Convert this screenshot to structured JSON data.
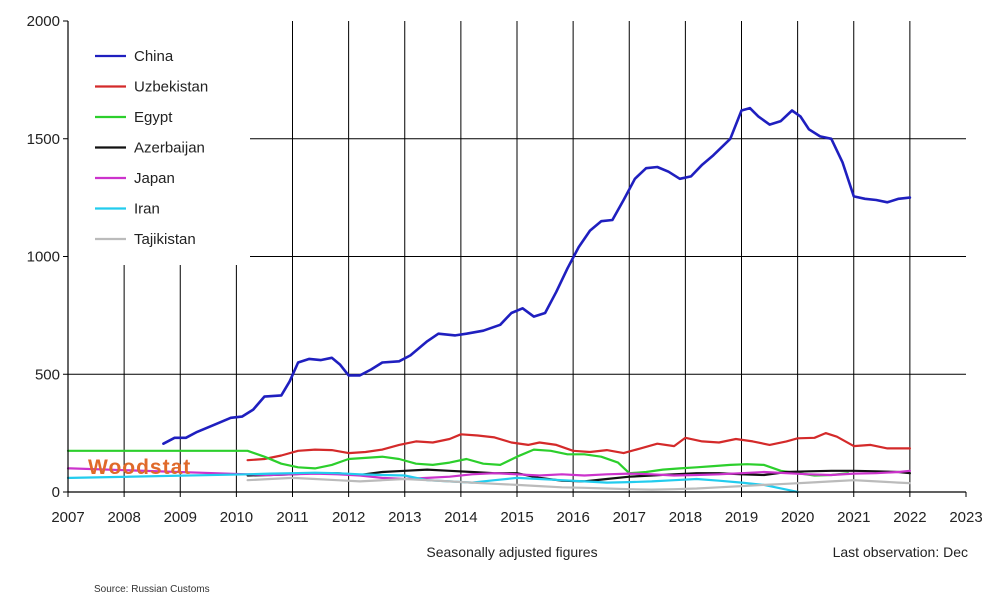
{
  "chart_data": {
    "type": "line",
    "title": "",
    "xlabel": "",
    "ylabel": "",
    "xlim": [
      2007,
      2023
    ],
    "ylim": [
      0,
      2000
    ],
    "x_ticks": [
      "2007",
      "2008",
      "2009",
      "2010",
      "2011",
      "2012",
      "2013",
      "2014",
      "2015",
      "2016",
      "2017",
      "2018",
      "2019",
      "2020",
      "2021",
      "2022",
      "2023"
    ],
    "y_ticks": [
      "0",
      "500",
      "1000",
      "1500",
      "2000"
    ],
    "grid": true,
    "legend_position": "top-left",
    "annotations": {
      "note_left": "Seasonally adjusted figures",
      "note_right": "Last observation: Dec",
      "source": "Source: Russian Customs",
      "brand": "Woodstat"
    },
    "series": [
      {
        "name": "China",
        "color": "#1f1fbf",
        "points": [
          [
            2008.7,
            205
          ],
          [
            2008.9,
            230
          ],
          [
            2009.1,
            230
          ],
          [
            2009.3,
            255
          ],
          [
            2009.6,
            285
          ],
          [
            2009.9,
            315
          ],
          [
            2010.1,
            320
          ],
          [
            2010.3,
            350
          ],
          [
            2010.5,
            405
          ],
          [
            2010.8,
            410
          ],
          [
            2010.95,
            470
          ],
          [
            2011.1,
            550
          ],
          [
            2011.3,
            565
          ],
          [
            2011.5,
            560
          ],
          [
            2011.7,
            570
          ],
          [
            2011.85,
            540
          ],
          [
            2012.0,
            495
          ],
          [
            2012.2,
            495
          ],
          [
            2012.4,
            520
          ],
          [
            2012.6,
            550
          ],
          [
            2012.9,
            555
          ],
          [
            2013.1,
            580
          ],
          [
            2013.4,
            640
          ],
          [
            2013.6,
            672
          ],
          [
            2013.9,
            665
          ],
          [
            2014.1,
            672
          ],
          [
            2014.4,
            685
          ],
          [
            2014.7,
            710
          ],
          [
            2014.9,
            760
          ],
          [
            2015.1,
            780
          ],
          [
            2015.3,
            745
          ],
          [
            2015.5,
            760
          ],
          [
            2015.7,
            850
          ],
          [
            2015.9,
            950
          ],
          [
            2016.1,
            1040
          ],
          [
            2016.3,
            1110
          ],
          [
            2016.5,
            1150
          ],
          [
            2016.7,
            1155
          ],
          [
            2016.9,
            1240
          ],
          [
            2017.1,
            1330
          ],
          [
            2017.3,
            1375
          ],
          [
            2017.5,
            1380
          ],
          [
            2017.7,
            1360
          ],
          [
            2017.9,
            1330
          ],
          [
            2018.1,
            1340
          ],
          [
            2018.3,
            1390
          ],
          [
            2018.5,
            1430
          ],
          [
            2018.8,
            1500
          ],
          [
            2019.0,
            1620
          ],
          [
            2019.15,
            1630
          ],
          [
            2019.3,
            1595
          ],
          [
            2019.5,
            1560
          ],
          [
            2019.7,
            1575
          ],
          [
            2019.9,
            1620
          ],
          [
            2020.05,
            1595
          ],
          [
            2020.2,
            1540
          ],
          [
            2020.4,
            1510
          ],
          [
            2020.6,
            1500
          ],
          [
            2020.8,
            1400
          ],
          [
            2021.0,
            1255
          ],
          [
            2021.2,
            1245
          ],
          [
            2021.4,
            1240
          ],
          [
            2021.6,
            1230
          ],
          [
            2021.8,
            1245
          ],
          [
            2022.0,
            1250
          ]
        ]
      },
      {
        "name": "Uzbekistan",
        "color": "#d42a2a",
        "points": [
          [
            2010.2,
            135
          ],
          [
            2010.5,
            140
          ],
          [
            2010.8,
            155
          ],
          [
            2011.1,
            175
          ],
          [
            2011.4,
            180
          ],
          [
            2011.7,
            178
          ],
          [
            2012.0,
            165
          ],
          [
            2012.3,
            170
          ],
          [
            2012.6,
            180
          ],
          [
            2012.9,
            200
          ],
          [
            2013.2,
            215
          ],
          [
            2013.5,
            210
          ],
          [
            2013.8,
            225
          ],
          [
            2014.0,
            245
          ],
          [
            2014.3,
            240
          ],
          [
            2014.6,
            232
          ],
          [
            2014.9,
            210
          ],
          [
            2015.2,
            200
          ],
          [
            2015.4,
            210
          ],
          [
            2015.7,
            200
          ],
          [
            2016.0,
            175
          ],
          [
            2016.3,
            170
          ],
          [
            2016.6,
            178
          ],
          [
            2016.9,
            165
          ],
          [
            2017.2,
            185
          ],
          [
            2017.5,
            205
          ],
          [
            2017.8,
            195
          ],
          [
            2018.0,
            230
          ],
          [
            2018.3,
            215
          ],
          [
            2018.6,
            210
          ],
          [
            2018.9,
            225
          ],
          [
            2019.2,
            215
          ],
          [
            2019.5,
            200
          ],
          [
            2019.8,
            215
          ],
          [
            2020.0,
            228
          ],
          [
            2020.3,
            230
          ],
          [
            2020.5,
            250
          ],
          [
            2020.7,
            235
          ],
          [
            2021.0,
            195
          ],
          [
            2021.3,
            200
          ],
          [
            2021.6,
            185
          ],
          [
            2022.0,
            185
          ]
        ]
      },
      {
        "name": "Egypt",
        "color": "#2ccf2c",
        "points": [
          [
            2007.0,
            175
          ],
          [
            2007.05,
            175
          ],
          [
            2010.2,
            175
          ],
          [
            2010.5,
            150
          ],
          [
            2010.8,
            120
          ],
          [
            2011.1,
            105
          ],
          [
            2011.4,
            100
          ],
          [
            2011.7,
            115
          ],
          [
            2012.0,
            140
          ],
          [
            2012.3,
            145
          ],
          [
            2012.6,
            150
          ],
          [
            2012.9,
            140
          ],
          [
            2013.2,
            120
          ],
          [
            2013.5,
            115
          ],
          [
            2013.8,
            125
          ],
          [
            2014.1,
            140
          ],
          [
            2014.4,
            120
          ],
          [
            2014.7,
            115
          ],
          [
            2015.0,
            150
          ],
          [
            2015.3,
            180
          ],
          [
            2015.6,
            175
          ],
          [
            2015.9,
            160
          ],
          [
            2016.2,
            160
          ],
          [
            2016.5,
            150
          ],
          [
            2016.8,
            125
          ],
          [
            2017.0,
            80
          ],
          [
            2017.3,
            85
          ],
          [
            2017.6,
            95
          ],
          [
            2017.9,
            100
          ],
          [
            2018.2,
            105
          ],
          [
            2018.5,
            110
          ],
          [
            2018.8,
            115
          ],
          [
            2019.1,
            118
          ],
          [
            2019.4,
            115
          ],
          [
            2019.7,
            90
          ],
          [
            2020.0,
            80
          ],
          [
            2020.3,
            70
          ],
          [
            2020.6,
            72
          ],
          [
            2020.9,
            80
          ]
        ]
      },
      {
        "name": "Azerbaijan",
        "color": "#111111",
        "points": [
          [
            2010.2,
            70
          ],
          [
            2010.6,
            72
          ],
          [
            2011.0,
            75
          ],
          [
            2011.4,
            80
          ],
          [
            2011.8,
            80
          ],
          [
            2012.2,
            72
          ],
          [
            2012.6,
            85
          ],
          [
            2013.0,
            90
          ],
          [
            2013.4,
            95
          ],
          [
            2013.8,
            90
          ],
          [
            2014.2,
            85
          ],
          [
            2014.6,
            80
          ],
          [
            2015.0,
            80
          ],
          [
            2015.4,
            60
          ],
          [
            2015.8,
            48
          ],
          [
            2016.2,
            45
          ],
          [
            2016.6,
            55
          ],
          [
            2017.0,
            65
          ],
          [
            2017.4,
            70
          ],
          [
            2017.8,
            75
          ],
          [
            2018.2,
            80
          ],
          [
            2018.6,
            80
          ],
          [
            2019.0,
            75
          ],
          [
            2019.4,
            72
          ],
          [
            2019.8,
            85
          ],
          [
            2020.2,
            88
          ],
          [
            2020.6,
            90
          ],
          [
            2021.0,
            90
          ],
          [
            2021.4,
            88
          ],
          [
            2021.8,
            85
          ],
          [
            2022.0,
            80
          ]
        ]
      },
      {
        "name": "Japan",
        "color": "#cc33cc",
        "points": [
          [
            2007.0,
            100
          ],
          [
            2007.05,
            100
          ],
          [
            2010.2,
            75
          ],
          [
            2010.6,
            72
          ],
          [
            2011.0,
            75
          ],
          [
            2011.4,
            78
          ],
          [
            2011.8,
            75
          ],
          [
            2012.2,
            70
          ],
          [
            2012.6,
            60
          ],
          [
            2013.0,
            55
          ],
          [
            2013.4,
            60
          ],
          [
            2013.8,
            65
          ],
          [
            2014.2,
            75
          ],
          [
            2014.6,
            80
          ],
          [
            2015.0,
            75
          ],
          [
            2015.4,
            70
          ],
          [
            2015.8,
            75
          ],
          [
            2016.2,
            70
          ],
          [
            2016.6,
            75
          ],
          [
            2017.0,
            78
          ],
          [
            2017.4,
            75
          ],
          [
            2017.8,
            70
          ],
          [
            2018.2,
            72
          ],
          [
            2018.6,
            75
          ],
          [
            2019.0,
            80
          ],
          [
            2019.4,
            85
          ],
          [
            2019.8,
            80
          ],
          [
            2020.2,
            75
          ],
          [
            2020.6,
            72
          ],
          [
            2021.0,
            78
          ],
          [
            2021.4,
            80
          ],
          [
            2021.8,
            85
          ],
          [
            2022.0,
            90
          ]
        ]
      },
      {
        "name": "Iran",
        "color": "#22ccee",
        "points": [
          [
            2007.0,
            60
          ],
          [
            2007.05,
            60
          ],
          [
            2010.2,
            75
          ],
          [
            2010.6,
            78
          ],
          [
            2011.0,
            80
          ],
          [
            2011.4,
            82
          ],
          [
            2011.8,
            80
          ],
          [
            2012.2,
            75
          ],
          [
            2012.6,
            72
          ],
          [
            2013.0,
            70
          ],
          [
            2013.4,
            50
          ],
          [
            2013.8,
            45
          ],
          [
            2014.2,
            40
          ],
          [
            2014.6,
            50
          ],
          [
            2015.0,
            60
          ],
          [
            2015.4,
            55
          ],
          [
            2015.8,
            50
          ],
          [
            2016.2,
            45
          ],
          [
            2016.6,
            40
          ],
          [
            2017.0,
            42
          ],
          [
            2017.4,
            45
          ],
          [
            2017.8,
            50
          ],
          [
            2018.2,
            55
          ],
          [
            2018.6,
            48
          ],
          [
            2019.0,
            40
          ],
          [
            2019.4,
            30
          ],
          [
            2019.8,
            10
          ],
          [
            2020.0,
            0
          ]
        ]
      },
      {
        "name": "Tajikistan",
        "color": "#bbbbbb",
        "points": [
          [
            2010.2,
            50
          ],
          [
            2010.6,
            55
          ],
          [
            2011.0,
            60
          ],
          [
            2011.4,
            55
          ],
          [
            2011.8,
            50
          ],
          [
            2012.2,
            45
          ],
          [
            2012.6,
            50
          ],
          [
            2013.0,
            55
          ],
          [
            2013.4,
            50
          ],
          [
            2013.8,
            45
          ],
          [
            2014.2,
            40
          ],
          [
            2014.6,
            35
          ],
          [
            2015.0,
            30
          ],
          [
            2015.4,
            25
          ],
          [
            2015.8,
            20
          ],
          [
            2016.2,
            18
          ],
          [
            2016.6,
            15
          ],
          [
            2017.0,
            12
          ],
          [
            2017.4,
            10
          ],
          [
            2017.8,
            12
          ],
          [
            2018.2,
            15
          ],
          [
            2018.6,
            20
          ],
          [
            2019.0,
            25
          ],
          [
            2019.4,
            30
          ],
          [
            2019.8,
            35
          ],
          [
            2020.2,
            40
          ],
          [
            2020.6,
            45
          ],
          [
            2021.0,
            50
          ],
          [
            2021.4,
            45
          ],
          [
            2021.8,
            40
          ],
          [
            2022.0,
            38
          ]
        ]
      }
    ]
  }
}
